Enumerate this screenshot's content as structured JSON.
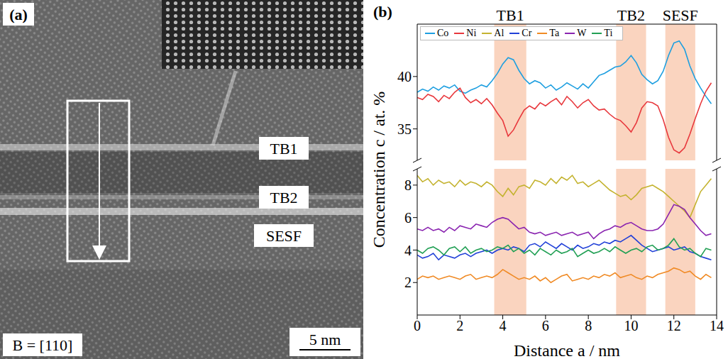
{
  "panel_a": {
    "letter": "(a)",
    "labels": [
      "TB1",
      "TB2",
      "SESF"
    ],
    "zone_axis": "B = [110]",
    "scale_bar": "5 nm"
  },
  "panel_b": {
    "letter": "(b)"
  },
  "chart_data": [
    {
      "type": "line",
      "ylabel": "Concentration c / at. %",
      "x": [
        0,
        0.25,
        0.5,
        0.75,
        1,
        1.25,
        1.5,
        1.75,
        2,
        2.25,
        2.5,
        2.75,
        3,
        3.25,
        3.5,
        3.75,
        4,
        4.25,
        4.5,
        4.75,
        5,
        5.25,
        5.5,
        5.75,
        6,
        6.25,
        6.5,
        6.75,
        7,
        7.25,
        7.5,
        7.75,
        8,
        8.25,
        8.5,
        8.75,
        9,
        9.25,
        9.5,
        9.75,
        10,
        10.25,
        10.5,
        10.75,
        11,
        11.25,
        11.5,
        11.75,
        12,
        12.25,
        12.5,
        12.75,
        13,
        13.25,
        13.5,
        13.75
      ],
      "xlim": [
        0,
        14
      ],
      "ylim": [
        32,
        45
      ],
      "yticks": [
        35,
        40
      ],
      "tick_labels": "y",
      "legend": "upper left",
      "annotations": [
        {
          "text": "TB1",
          "x": [
            3.6,
            5.1
          ]
        },
        {
          "text": "TB2",
          "x": [
            9.3,
            10.7
          ]
        },
        {
          "text": "SESF",
          "x": [
            11.6,
            13.0
          ]
        }
      ],
      "series": [
        {
          "name": "Co",
          "color": "#1e9fe0",
          "values": [
            38.5,
            38.8,
            38.6,
            39.0,
            38.7,
            39.1,
            38.9,
            39.2,
            38.6,
            38.4,
            38.7,
            38.9,
            39.2,
            39.0,
            39.6,
            40.3,
            41.2,
            41.8,
            41.6,
            40.6,
            39.8,
            39.3,
            39.6,
            39.4,
            38.9,
            39.2,
            38.7,
            39.0,
            39.4,
            39.1,
            38.8,
            39.3,
            38.9,
            39.5,
            40.1,
            40.3,
            40.6,
            40.9,
            41.0,
            41.4,
            42.0,
            41.3,
            40.2,
            39.7,
            39.3,
            39.6,
            40.5,
            42.0,
            43.2,
            43.4,
            42.6,
            41.0,
            39.8,
            38.9,
            38.1,
            37.4
          ]
        },
        {
          "name": "Ni",
          "color": "#e8383d",
          "values": [
            38.0,
            37.8,
            38.3,
            38.1,
            37.6,
            38.2,
            37.9,
            38.5,
            38.9,
            38.0,
            37.5,
            37.8,
            37.4,
            37.9,
            37.3,
            36.5,
            35.8,
            34.3,
            34.9,
            35.9,
            36.8,
            37.2,
            36.9,
            37.5,
            37.2,
            37.6,
            37.9,
            37.3,
            38.1,
            37.6,
            37.0,
            37.5,
            37.8,
            37.2,
            36.8,
            36.9,
            36.4,
            36.0,
            35.8,
            35.3,
            34.7,
            35.6,
            37.0,
            37.6,
            37.5,
            37.2,
            35.9,
            34.2,
            33.0,
            32.7,
            33.2,
            34.5,
            36.0,
            37.4,
            38.6,
            39.4
          ]
        }
      ]
    },
    {
      "type": "line",
      "xlabel": "Distance a / nm",
      "x": [
        0,
        0.25,
        0.5,
        0.75,
        1,
        1.25,
        1.5,
        1.75,
        2,
        2.25,
        2.5,
        2.75,
        3,
        3.25,
        3.5,
        3.75,
        4,
        4.25,
        4.5,
        4.75,
        5,
        5.25,
        5.5,
        5.75,
        6,
        6.25,
        6.5,
        6.75,
        7,
        7.25,
        7.5,
        7.75,
        8,
        8.25,
        8.5,
        8.75,
        9,
        9.25,
        9.5,
        9.75,
        10,
        10.25,
        10.5,
        10.75,
        11,
        11.25,
        11.5,
        11.75,
        12,
        12.25,
        12.5,
        12.75,
        13,
        13.25,
        13.5,
        13.75
      ],
      "xlim": [
        0,
        14
      ],
      "xticks": [
        0,
        2,
        4,
        6,
        8,
        10,
        12,
        14
      ],
      "ylim": [
        0,
        9
      ],
      "yticks": [
        2,
        4,
        6,
        8
      ],
      "series": [
        {
          "name": "Al",
          "color": "#c4b330",
          "values": [
            8.6,
            8.2,
            8.4,
            8.0,
            8.3,
            8.1,
            8.2,
            7.9,
            8.3,
            8.0,
            8.2,
            8.1,
            7.9,
            8.2,
            8.0,
            7.6,
            7.3,
            7.8,
            7.4,
            7.9,
            8.0,
            7.8,
            8.3,
            8.2,
            8.0,
            8.4,
            8.1,
            8.5,
            8.3,
            8.6,
            8.1,
            8.2,
            7.9,
            8.1,
            8.3,
            8.0,
            7.7,
            7.5,
            7.3,
            7.4,
            7.1,
            7.4,
            7.8,
            7.9,
            8.0,
            7.8,
            7.6,
            7.3,
            7.0,
            6.7,
            6.4,
            6.0,
            6.8,
            7.6,
            8.0,
            8.4
          ]
        },
        {
          "name": "Cr",
          "color": "#2140d8",
          "values": [
            3.7,
            3.5,
            3.6,
            3.8,
            3.4,
            3.7,
            3.6,
            3.5,
            3.7,
            3.8,
            3.6,
            3.8,
            3.9,
            4.0,
            3.8,
            4.0,
            4.1,
            4.0,
            4.2,
            4.1,
            3.9,
            4.3,
            4.4,
            4.2,
            4.5,
            4.3,
            4.1,
            4.4,
            4.2,
            4.0,
            4.3,
            4.1,
            4.2,
            4.4,
            4.3,
            4.5,
            4.4,
            4.6,
            4.5,
            4.7,
            4.9,
            4.6,
            4.3,
            4.1,
            3.9,
            4.0,
            4.1,
            4.2,
            4.0,
            4.1,
            4.2,
            3.9,
            3.8,
            3.6,
            3.5,
            3.4
          ]
        },
        {
          "name": "Ta",
          "color": "#f08a24",
          "values": [
            2.2,
            2.4,
            2.3,
            2.4,
            2.2,
            2.3,
            2.4,
            2.3,
            2.2,
            2.4,
            2.5,
            2.2,
            2.3,
            2.4,
            2.3,
            2.5,
            2.8,
            2.6,
            2.4,
            2.2,
            2.3,
            2.2,
            2.4,
            2.1,
            2.3,
            2.0,
            2.2,
            2.4,
            2.5,
            2.1,
            2.2,
            2.3,
            2.2,
            2.4,
            2.3,
            2.5,
            2.4,
            2.6,
            2.3,
            2.4,
            2.5,
            2.3,
            2.2,
            2.4,
            2.3,
            2.5,
            2.6,
            2.7,
            2.9,
            2.8,
            2.6,
            2.7,
            2.4,
            2.2,
            2.5,
            2.3
          ]
        },
        {
          "name": "W",
          "color": "#8a24b0",
          "values": [
            5.3,
            5.2,
            5.4,
            5.2,
            5.3,
            5.1,
            5.4,
            5.2,
            5.5,
            5.4,
            5.3,
            5.6,
            5.5,
            5.4,
            5.7,
            5.9,
            6.0,
            5.9,
            5.6,
            5.3,
            5.4,
            5.1,
            5.0,
            5.1,
            4.9,
            5.0,
            5.1,
            4.9,
            5.0,
            5.1,
            4.9,
            5.0,
            5.1,
            4.7,
            5.0,
            5.2,
            5.3,
            5.5,
            5.4,
            5.6,
            5.7,
            5.5,
            5.3,
            5.2,
            5.2,
            5.3,
            5.6,
            6.2,
            6.8,
            6.7,
            6.5,
            6.0,
            5.6,
            5.2,
            4.9,
            5.0
          ]
        },
        {
          "name": "Ti",
          "color": "#22a055",
          "values": [
            4.0,
            3.8,
            4.1,
            4.2,
            4.0,
            3.7,
            4.1,
            4.2,
            3.9,
            4.2,
            3.8,
            4.0,
            4.1,
            3.9,
            4.0,
            4.2,
            4.1,
            4.3,
            3.9,
            4.1,
            3.8,
            4.0,
            3.7,
            4.1,
            3.9,
            3.7,
            4.0,
            3.8,
            3.9,
            4.1,
            3.6,
            3.8,
            4.0,
            3.8,
            3.9,
            4.1,
            3.9,
            4.2,
            4.0,
            3.8,
            4.0,
            4.1,
            3.9,
            4.2,
            4.3,
            4.0,
            4.1,
            4.3,
            4.7,
            4.2,
            4.0,
            4.1,
            3.8,
            3.6,
            4.1,
            4.0
          ]
        }
      ]
    }
  ]
}
